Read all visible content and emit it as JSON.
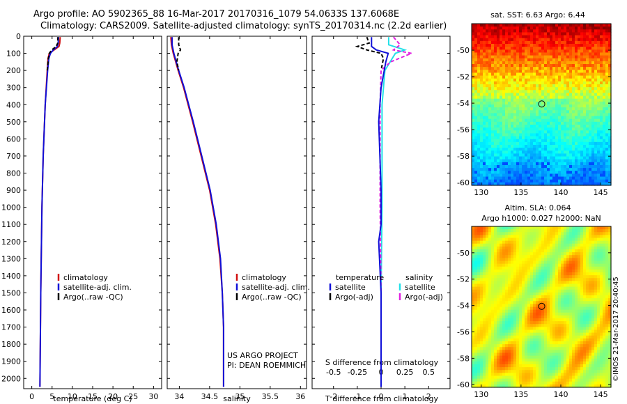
{
  "header": {
    "line1": "Argo profile: AO 5902365_88 16-Mar-2017 20170316_1079 54.0633S 137.6068E",
    "line2": "Climatology: CARS2009. Satellite-adjusted climatology: synTS_20170314.nc (2.2d earlier)"
  },
  "colors": {
    "climatology": "#d11010",
    "satellite": "#1010d8",
    "argo": "#000000",
    "sal_satellite": "#22e0e8",
    "sal_argo": "#e020e0"
  },
  "depth_axis": {
    "ticks": [
      0,
      100,
      200,
      300,
      400,
      500,
      600,
      700,
      800,
      900,
      1000,
      1100,
      1200,
      1300,
      1400,
      1500,
      1600,
      1700,
      1800,
      1900,
      2000
    ],
    "min": 0,
    "max": 2060
  },
  "chart_data": [
    {
      "type": "line",
      "name": "temperature-profile",
      "xlabel": "temperature (deg C)",
      "xticks": [
        0,
        5,
        10,
        15,
        20,
        25,
        30
      ],
      "xlim": [
        -2,
        32
      ],
      "legend": [
        "climatology",
        "satellite-adj. clim.",
        "Argo(..raw -QC)"
      ],
      "series": [
        {
          "name": "climatology",
          "depth": [
            5,
            40,
            60,
            80,
            100,
            130,
            200,
            400,
            700,
            1000,
            1500,
            2050
          ],
          "value": [
            7.0,
            6.9,
            6.7,
            5.5,
            4.3,
            4.0,
            3.8,
            3.3,
            2.8,
            2.5,
            2.2,
            2.0
          ]
        },
        {
          "name": "satellite-adj. clim.",
          "depth": [
            5,
            40,
            60,
            80,
            100,
            130,
            200,
            400,
            700,
            1000,
            1500,
            2050
          ],
          "value": [
            6.6,
            6.5,
            6.3,
            5.3,
            4.6,
            4.2,
            3.9,
            3.3,
            2.8,
            2.5,
            2.2,
            2.0
          ]
        },
        {
          "name": "Argo(..raw -QC)",
          "depth": [
            5,
            40,
            60,
            80,
            100,
            130,
            200
          ],
          "value": [
            6.4,
            6.4,
            6.0,
            4.9,
            4.3,
            4.1,
            3.8
          ]
        }
      ]
    },
    {
      "type": "line",
      "name": "salinity-profile",
      "xlabel": "salinity",
      "xticks": [
        34,
        34.5,
        35,
        35.5,
        36
      ],
      "xlim": [
        33.8,
        36.1
      ],
      "legend": [
        "climatology",
        "satellite-adj. clim.",
        "Argo(..raw -QC)"
      ],
      "annotation": [
        "US ARGO PROJECT",
        "PI: DEAN ROEMMICH"
      ],
      "series": [
        {
          "name": "climatology",
          "depth": [
            5,
            50,
            100,
            150,
            200,
            300,
            500,
            700,
            900,
            1100,
            1300,
            1500,
            1700,
            2050
          ],
          "value": [
            33.86,
            33.87,
            33.9,
            33.94,
            33.98,
            34.07,
            34.22,
            34.36,
            34.5,
            34.6,
            34.67,
            34.71,
            34.73,
            34.73
          ]
        },
        {
          "name": "satellite-adj. clim.",
          "depth": [
            5,
            50,
            100,
            150,
            200,
            300,
            500,
            700,
            900,
            1100,
            1300,
            1500,
            1700,
            2050
          ],
          "value": [
            33.88,
            33.88,
            33.91,
            33.95,
            33.99,
            34.08,
            34.23,
            34.37,
            34.51,
            34.61,
            34.68,
            34.71,
            34.73,
            34.73
          ]
        },
        {
          "name": "Argo(..raw -QC)",
          "depth": [
            5,
            50,
            80,
            100,
            150,
            200
          ],
          "value": [
            33.99,
            33.99,
            34.02,
            33.98,
            33.96,
            33.99
          ]
        }
      ]
    },
    {
      "type": "line",
      "name": "difference-profile",
      "xlabel": "T difference from climatology",
      "xlabel_top": "S difference from climatology",
      "xticks_T": [
        -2,
        -1,
        0,
        1,
        2
      ],
      "xticks_S": [
        -0.5,
        -0.25,
        0,
        0.25,
        0.5
      ],
      "xlim_T": [
        -2.9,
        2.9
      ],
      "legend_temperature": {
        "title": "temperature",
        "items": [
          "satellite",
          "Argo(-adj)"
        ]
      },
      "legend_salinity": {
        "title": "salinity",
        "items": [
          "satellite",
          "Argo(-adj)"
        ]
      },
      "series": [
        {
          "name": "T satellite",
          "depth": [
            5,
            60,
            80,
            100,
            150,
            300,
            500,
            700,
            900,
            1100,
            1200,
            1500,
            2050
          ],
          "value": [
            -0.4,
            -0.4,
            -0.2,
            0.3,
            0.2,
            0.0,
            -0.1,
            -0.05,
            0.0,
            0.0,
            -0.1,
            0.0,
            0.0
          ]
        },
        {
          "name": "T Argo(-adj)",
          "depth": [
            5,
            40,
            60,
            80,
            100,
            130,
            200
          ],
          "value": [
            -0.6,
            -0.5,
            -1.0,
            -0.6,
            0.0,
            0.1,
            0.0
          ]
        },
        {
          "name": "S satellite",
          "depth": [
            5,
            50,
            80,
            100,
            200,
            400,
            700,
            1000,
            1500,
            2050
          ],
          "value": [
            0.08,
            0.08,
            0.25,
            0.15,
            0.04,
            0.01,
            0.01,
            0.01,
            0.0,
            0.0
          ]
        },
        {
          "name": "S Argo(-adj)",
          "depth": [
            5,
            50,
            80,
            100,
            150,
            200,
            400,
            700,
            1000,
            1500,
            2050
          ],
          "value": [
            0.13,
            0.2,
            0.13,
            0.32,
            0.1,
            0.0,
            -0.01,
            -0.01,
            -0.01,
            0.0,
            0.0
          ]
        }
      ]
    },
    {
      "type": "heatmap",
      "name": "sst-map",
      "title": "sat. SST: 6.63 Argo: 6.44",
      "xticks": [
        130,
        135,
        140,
        145
      ],
      "yticks": [
        -50,
        -52,
        -54,
        -56,
        -58,
        -60
      ],
      "xlim": [
        128.8,
        146.3
      ],
      "ylim": [
        -60.2,
        -48.0
      ],
      "marker": {
        "lon": 137.6,
        "lat": -54.06
      }
    },
    {
      "type": "heatmap",
      "name": "sla-map",
      "title": "Altim. SLA: 0.064",
      "subtitle": "Argo h1000: 0.027 h2000: NaN",
      "xticks": [
        130,
        135,
        140,
        145
      ],
      "yticks": [
        -50,
        -52,
        -54,
        -56,
        -58,
        -60
      ],
      "xlim": [
        128.8,
        146.3
      ],
      "ylim": [
        -60.2,
        -48.0
      ],
      "marker": {
        "lon": 137.6,
        "lat": -54.06
      }
    }
  ],
  "credit": "©IMOS 21-Mar-2017 20:40:45"
}
